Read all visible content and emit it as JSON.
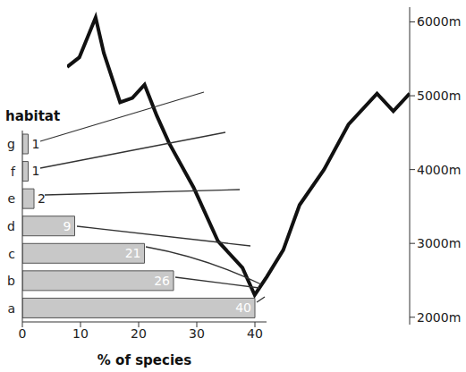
{
  "chart_data": [
    {
      "type": "bar",
      "orientation": "horizontal",
      "categories": [
        "a",
        "b",
        "c",
        "d",
        "e",
        "f",
        "g"
      ],
      "values": [
        40,
        26,
        21,
        9,
        2,
        1,
        1
      ],
      "color": "#c8c8c8",
      "xlabel": "% of species",
      "ylabel": "habitat",
      "xlim": [
        0,
        42
      ],
      "xticks": [
        0,
        10,
        20,
        30,
        40
      ],
      "data_labels": true,
      "grid": false
    },
    {
      "type": "line",
      "x": [
        85,
        100,
        120,
        130,
        150,
        165,
        180,
        195,
        210,
        240,
        270,
        300,
        315,
        330,
        350,
        370,
        400,
        430,
        465,
        485,
        505
      ],
      "values": [
        5390,
        5520,
        6060,
        5580,
        4910,
        4970,
        5150,
        4730,
        4360,
        3760,
        3030,
        2670,
        2300,
        2550,
        2910,
        3520,
        4000,
        4610,
        5030,
        4790,
        5030
      ],
      "xlim": [
        85,
        505
      ],
      "ylim": [
        1900,
        6200
      ],
      "yticks": [
        {
          "value": 2000,
          "label": "2000m"
        },
        {
          "value": 3000,
          "label": "3000m"
        },
        {
          "value": 4000,
          "label": "4000m"
        },
        {
          "value": 5000,
          "label": "5000m"
        },
        {
          "value": 6000,
          "label": "6000m"
        }
      ],
      "tick_labels": "y",
      "color": "#111111",
      "grid": false
    }
  ]
}
